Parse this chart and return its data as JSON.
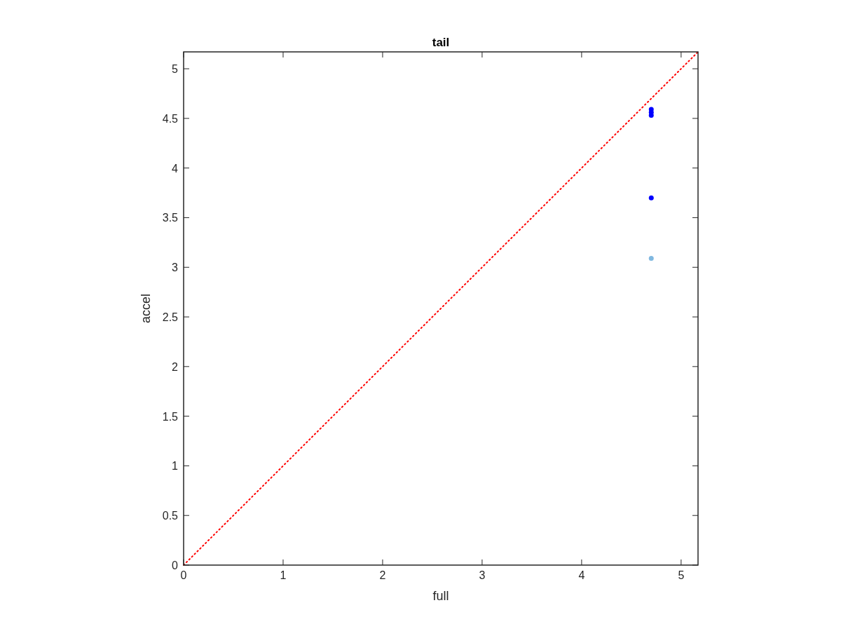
{
  "chart_data": {
    "type": "scatter",
    "title": "tail",
    "xlabel": "full",
    "ylabel": "accel",
    "xlim": [
      0,
      5.17
    ],
    "ylim": [
      0,
      5.17
    ],
    "xticks": [
      0,
      1,
      2,
      3,
      4,
      5
    ],
    "yticks": [
      0,
      0.5,
      1,
      1.5,
      2,
      2.5,
      3,
      3.5,
      4,
      4.5,
      5
    ],
    "grid": false,
    "marker": "circle",
    "series": [
      {
        "type": "line",
        "color": "#ff0000",
        "line_style": "dotted",
        "marker": "none",
        "x": [
          0,
          5.17
        ],
        "values": [
          0,
          5.17
        ]
      },
      {
        "color": "#0000ff",
        "x": [
          4.7,
          4.7,
          4.7,
          4.7
        ],
        "values": [
          4.59,
          4.56,
          4.53,
          3.7
        ]
      },
      {
        "color": "#80b8e0",
        "x": [
          4.7
        ],
        "values": [
          3.09
        ]
      }
    ]
  }
}
